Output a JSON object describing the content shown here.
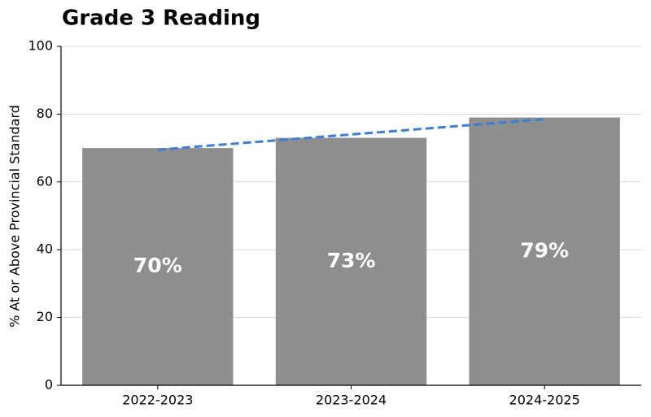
{
  "chart_data": {
    "type": "bar",
    "title": "Grade 3 Reading",
    "ylabel": "% At or Above Provincial Standard",
    "categories": [
      "2022-2023",
      "2023-2024",
      "2024-2025"
    ],
    "values": [
      70,
      73,
      79
    ],
    "value_labels": [
      "70%",
      "73%",
      "79%"
    ],
    "color": "#8e8e8e",
    "trend": {
      "values": [
        69.5,
        74,
        78.5
      ],
      "color": "#3a7fd5",
      "dashed": true
    },
    "ylim": [
      0,
      100
    ],
    "yticks": [
      0,
      20,
      40,
      60,
      80,
      100
    ],
    "grid": true
  }
}
